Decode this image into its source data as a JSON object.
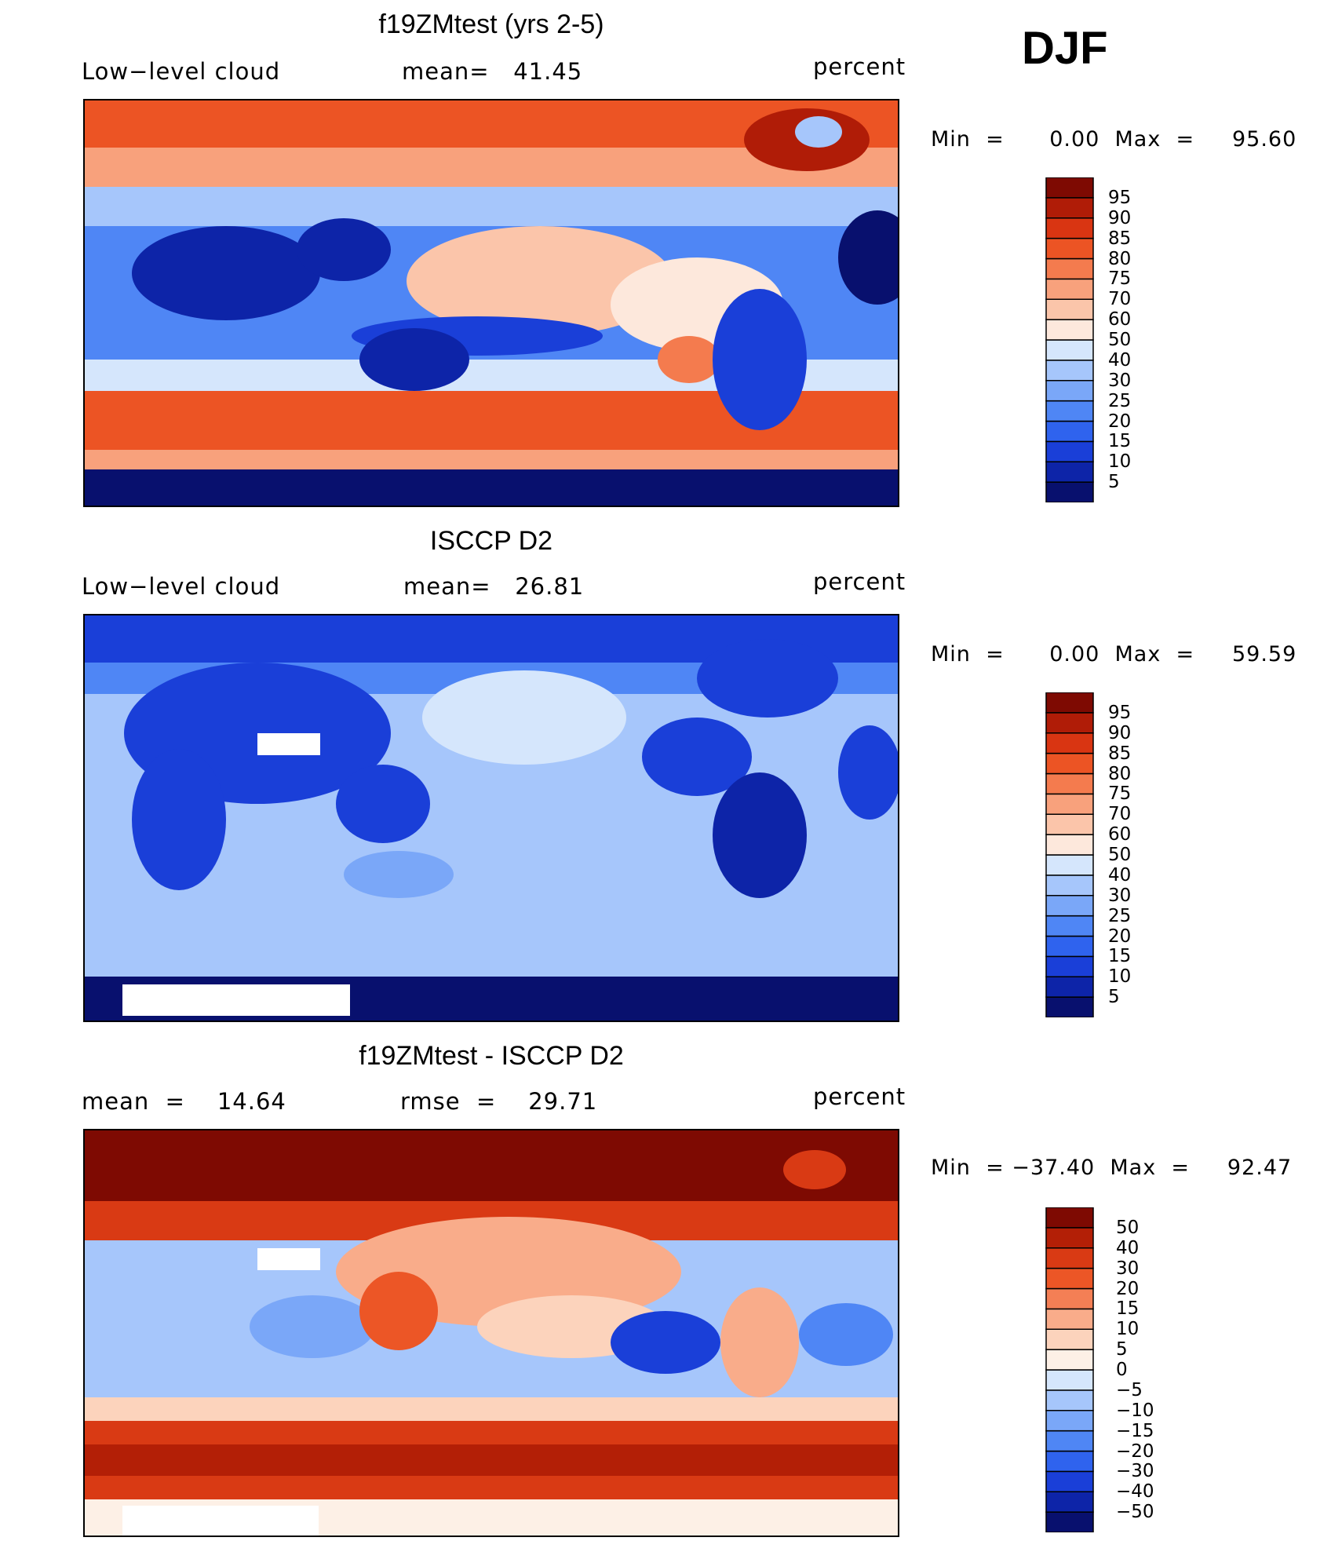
{
  "season": "DJF",
  "colors": {
    "abs_scale": [
      "#08106e",
      "#0d24a8",
      "#1a3fd8",
      "#2f63ee",
      "#4f86f5",
      "#7aa7f8",
      "#a6c6fb",
      "#d5e6fc",
      "#fde8dc",
      "#fbc5aa",
      "#f8a17c",
      "#f47b4e",
      "#ec5424",
      "#d93512",
      "#b01c07",
      "#7e0a02"
    ],
    "diff_scale": [
      "#08106e",
      "#0d24a8",
      "#1a3fd8",
      "#2f63ee",
      "#4f86f5",
      "#7aa7f8",
      "#a6c6fb",
      "#d5e6fc",
      "#fdf0e6",
      "#fcd3bc",
      "#f9ac8a",
      "#f47f55",
      "#ec5626",
      "#d93a14",
      "#b31f06",
      "#7e0a02"
    ]
  },
  "panels": [
    {
      "id": "model",
      "title": "f19ZMtest (yrs 2-5)",
      "left_label": "Low−level cloud",
      "center_label": "mean=   41.45",
      "right_label": "percent",
      "minmax": "Min  =      0.00  Max  =     95.60",
      "colorbar_labels": [
        "95",
        "90",
        "85",
        "80",
        "75",
        "70",
        "60",
        "50",
        "40",
        "30",
        "25",
        "20",
        "15",
        "10",
        "5"
      ],
      "scale": "abs"
    },
    {
      "id": "obs",
      "title": "ISCCP D2",
      "left_label": "Low−level cloud",
      "center_label": "mean=   26.81",
      "right_label": "percent",
      "minmax": "Min  =      0.00  Max  =     59.59",
      "colorbar_labels": [
        "95",
        "90",
        "85",
        "80",
        "75",
        "70",
        "60",
        "50",
        "40",
        "30",
        "25",
        "20",
        "15",
        "10",
        "5"
      ],
      "scale": "abs"
    },
    {
      "id": "diff",
      "title": "f19ZMtest - ISCCP D2",
      "left_label": "mean  =    14.64",
      "center_label": "rmse  =    29.71",
      "right_label": "percent",
      "minmax": "Min  = −37.40  Max  =     92.47",
      "colorbar_labels": [
        "50",
        "40",
        "30",
        "20",
        "15",
        "10",
        "5",
        "0",
        "−5",
        "−10",
        "−15",
        "−20",
        "−30",
        "−40",
        "−50"
      ],
      "scale": "diff"
    }
  ]
}
